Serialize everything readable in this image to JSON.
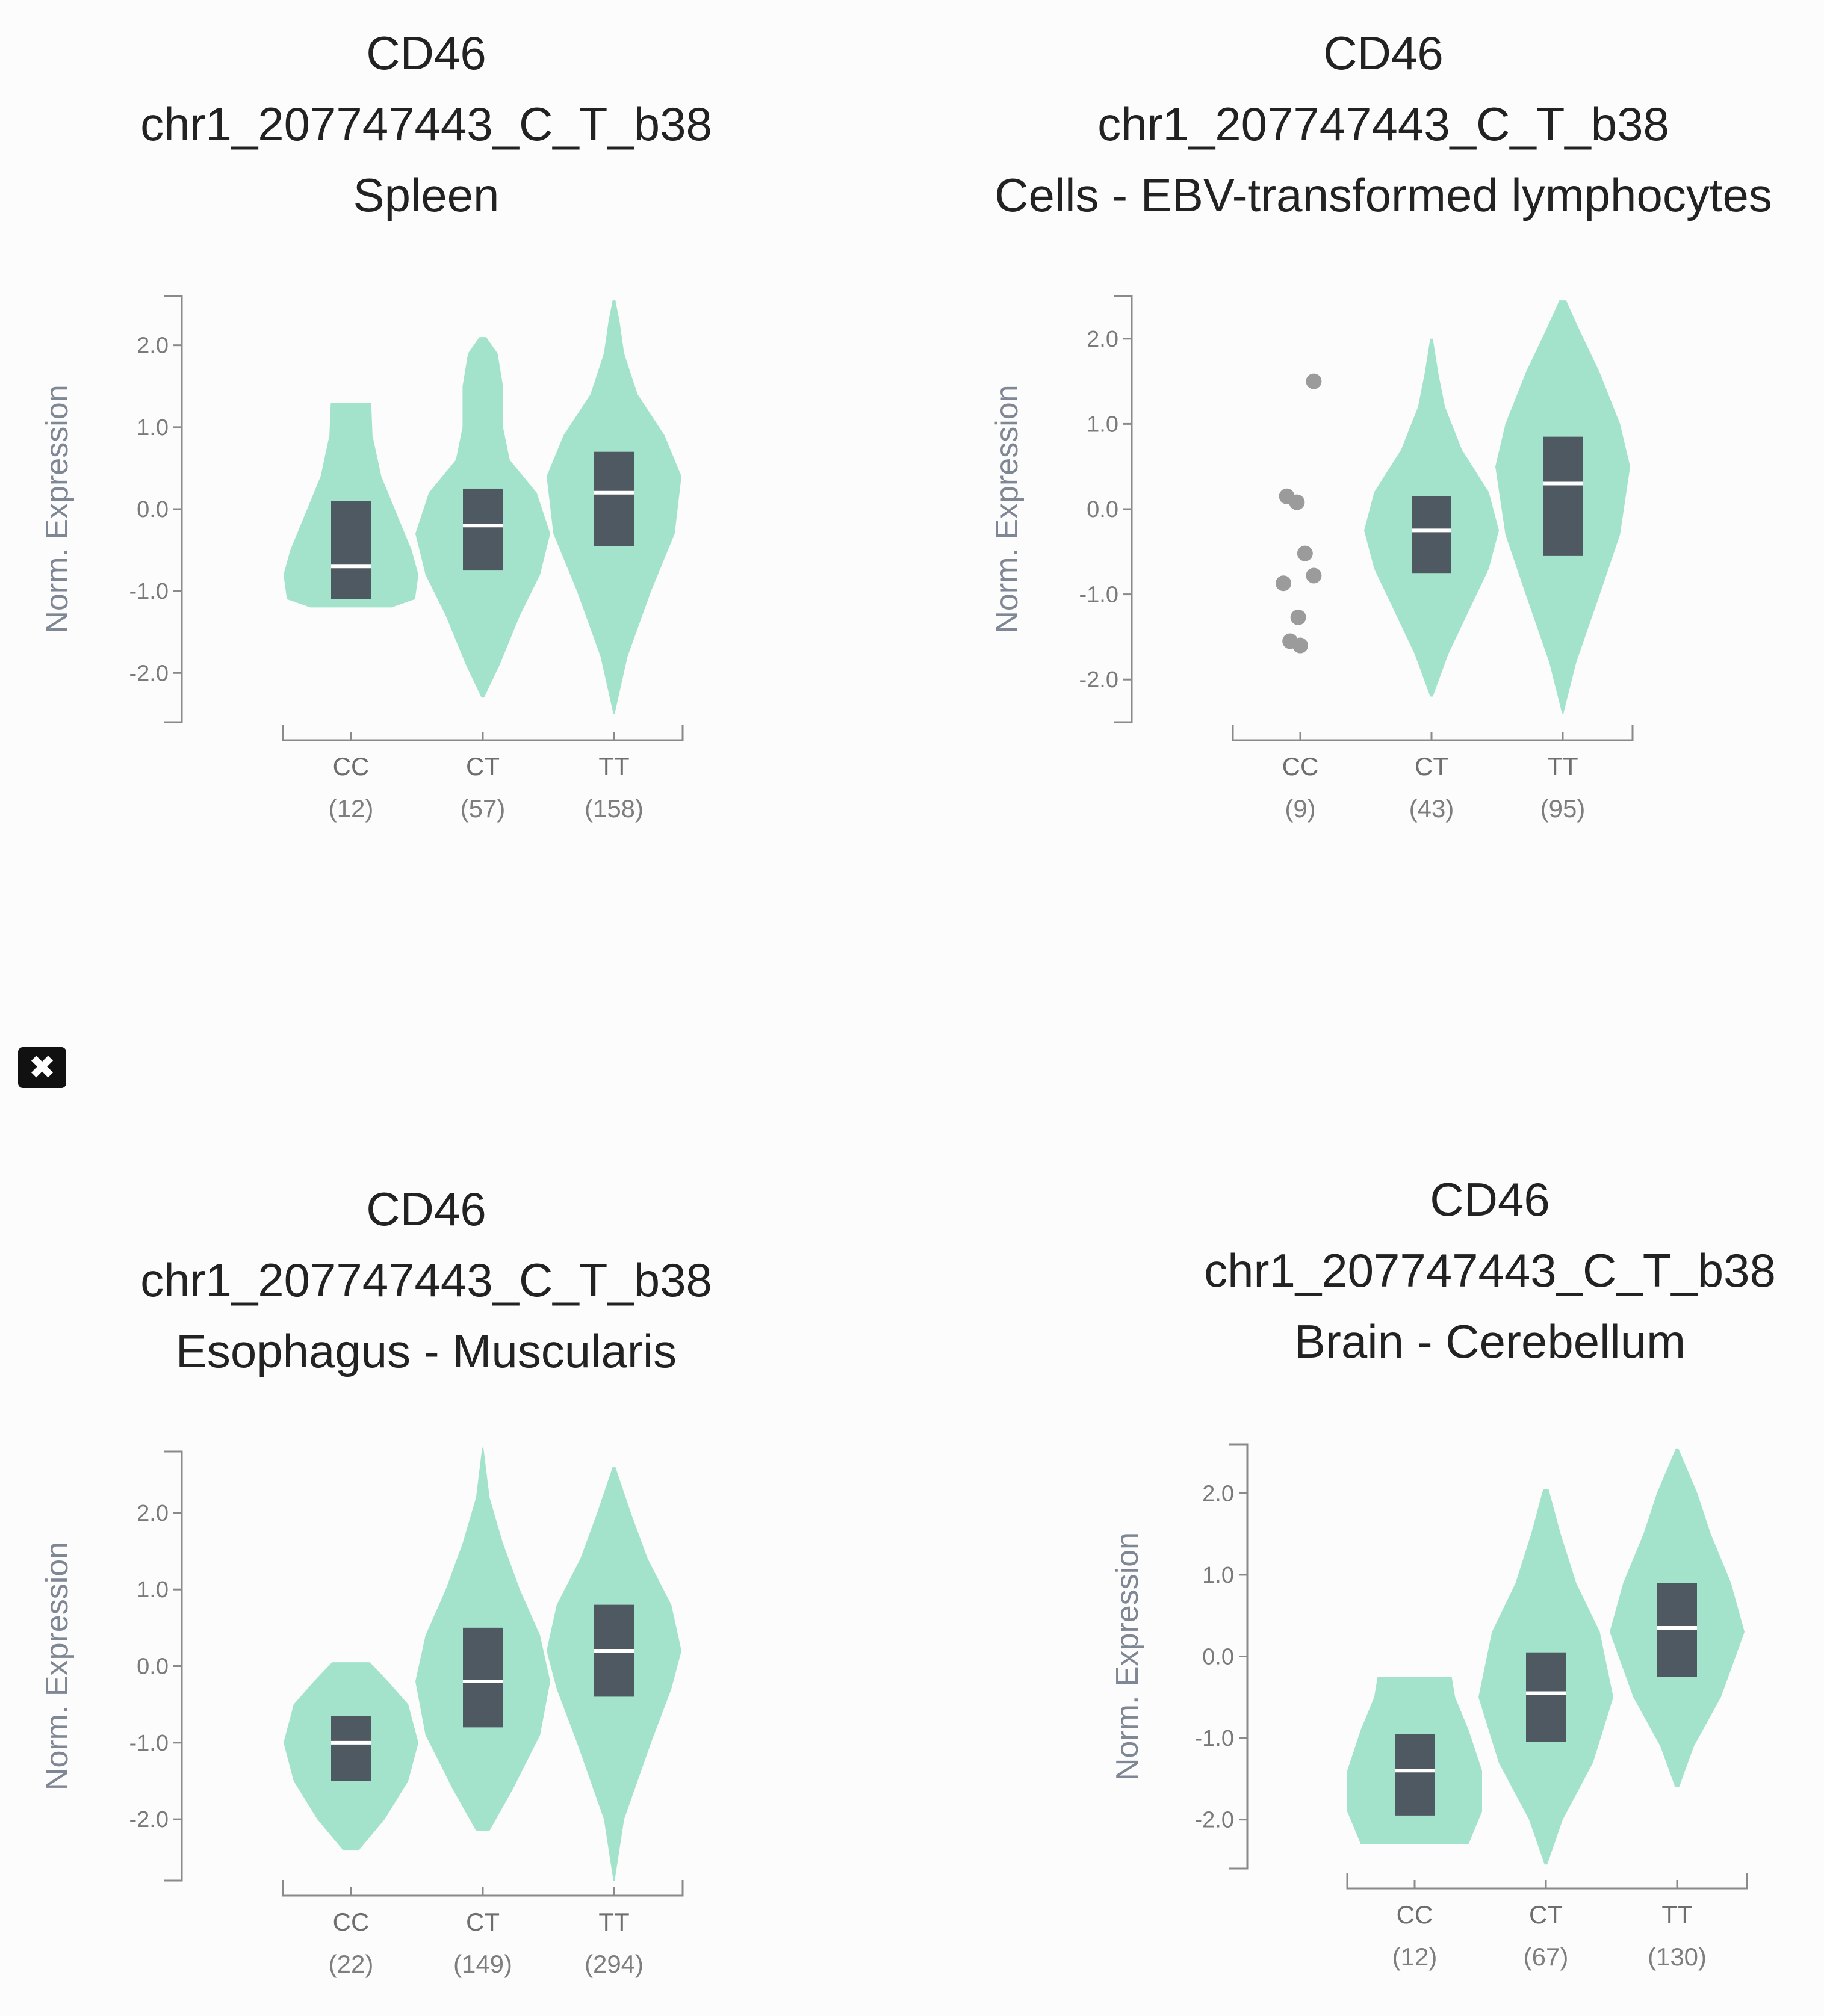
{
  "close_button": {
    "icon": "close-icon",
    "symbol": "✖",
    "bg": "#111111",
    "fg": "#ffffff"
  },
  "colors": {
    "violin": "#a4e3cb",
    "box": "#4f5962",
    "median": "#ffffff",
    "outlier": "#9b9b9b",
    "axis": "#8a8a8a"
  },
  "chart_data": [
    {
      "type": "violin",
      "gene": "CD46",
      "variant": "chr1_207747443_C_T_b38",
      "tissue": "Spleen",
      "ylabel": "Norm. Expression",
      "ylim": [
        -2.6,
        2.6
      ],
      "yticks": [
        "2.0",
        "1.0",
        "0.0",
        "-1.0",
        "-2.0"
      ],
      "ytick_values": [
        2.0,
        1.0,
        0.0,
        -1.0,
        -2.0
      ],
      "categories": [
        "CC",
        "CT",
        "TT"
      ],
      "counts": [
        "(12)",
        "(57)",
        "(158)"
      ],
      "groups": [
        {
          "name": "CC",
          "min": -1.2,
          "max": 1.3,
          "q1": -1.1,
          "median": -0.7,
          "q3": 0.1,
          "profile": [
            [
              -1.2,
              0.6
            ],
            [
              -1.1,
              0.95
            ],
            [
              -0.8,
              1.0
            ],
            [
              -0.5,
              0.9
            ],
            [
              -0.1,
              0.7
            ],
            [
              0.4,
              0.45
            ],
            [
              0.9,
              0.32
            ],
            [
              1.3,
              0.3
            ]
          ]
        },
        {
          "name": "CT",
          "min": -2.3,
          "max": 2.1,
          "q1": -0.75,
          "median": -0.2,
          "q3": 0.25,
          "profile": [
            [
              -2.3,
              0.02
            ],
            [
              -1.9,
              0.25
            ],
            [
              -1.3,
              0.55
            ],
            [
              -0.8,
              0.85
            ],
            [
              -0.3,
              1.0
            ],
            [
              0.2,
              0.8
            ],
            [
              0.6,
              0.4
            ],
            [
              1.0,
              0.3
            ],
            [
              1.5,
              0.3
            ],
            [
              1.9,
              0.22
            ],
            [
              2.1,
              0.05
            ]
          ]
        },
        {
          "name": "TT",
          "min": -2.5,
          "max": 2.55,
          "q1": -0.45,
          "median": 0.2,
          "q3": 0.7,
          "profile": [
            [
              -2.5,
              0.01
            ],
            [
              -1.8,
              0.2
            ],
            [
              -1.0,
              0.55
            ],
            [
              -0.3,
              0.9
            ],
            [
              0.4,
              1.0
            ],
            [
              0.9,
              0.75
            ],
            [
              1.4,
              0.35
            ],
            [
              1.9,
              0.15
            ],
            [
              2.3,
              0.08
            ],
            [
              2.55,
              0.02
            ]
          ]
        }
      ],
      "outliers": []
    },
    {
      "type": "violin",
      "gene": "CD46",
      "variant": "chr1_207747443_C_T_b38",
      "tissue": "Cells - EBV-transformed lymphocytes",
      "ylabel": "Norm. Expression",
      "ylim": [
        -2.5,
        2.5
      ],
      "yticks": [
        "2.0",
        "1.0",
        "0.0",
        "-1.0",
        "-2.0"
      ],
      "ytick_values": [
        2.0,
        1.0,
        0.0,
        -1.0,
        -2.0
      ],
      "categories": [
        "CC",
        "CT",
        "TT"
      ],
      "counts": [
        "(9)",
        "(43)",
        "(95)"
      ],
      "groups": [
        {
          "name": "CC",
          "min": null,
          "max": null,
          "q1": null,
          "median": null,
          "q3": null,
          "profile": []
        },
        {
          "name": "CT",
          "min": -2.2,
          "max": 2.0,
          "q1": -0.75,
          "median": -0.25,
          "q3": 0.15,
          "profile": [
            [
              -2.2,
              0.02
            ],
            [
              -1.7,
              0.25
            ],
            [
              -1.2,
              0.55
            ],
            [
              -0.7,
              0.85
            ],
            [
              -0.25,
              1.0
            ],
            [
              0.2,
              0.85
            ],
            [
              0.7,
              0.45
            ],
            [
              1.2,
              0.2
            ],
            [
              1.6,
              0.1
            ],
            [
              2.0,
              0.02
            ]
          ]
        },
        {
          "name": "TT",
          "min": -2.4,
          "max": 2.45,
          "q1": -0.55,
          "median": 0.3,
          "q3": 0.85,
          "profile": [
            [
              -2.4,
              0.01
            ],
            [
              -1.8,
              0.2
            ],
            [
              -1.0,
              0.55
            ],
            [
              -0.3,
              0.85
            ],
            [
              0.5,
              1.0
            ],
            [
              1.0,
              0.85
            ],
            [
              1.6,
              0.55
            ],
            [
              2.1,
              0.25
            ],
            [
              2.45,
              0.05
            ]
          ]
        }
      ],
      "outliers": [
        {
          "cat": 0,
          "dx": 0.2,
          "y": 1.5
        },
        {
          "cat": 0,
          "dx": -0.2,
          "y": 0.15
        },
        {
          "cat": 0,
          "dx": -0.05,
          "y": 0.08
        },
        {
          "cat": 0,
          "dx": 0.07,
          "y": -0.52
        },
        {
          "cat": 0,
          "dx": 0.2,
          "y": -0.78
        },
        {
          "cat": 0,
          "dx": -0.25,
          "y": -0.87
        },
        {
          "cat": 0,
          "dx": -0.03,
          "y": -1.27
        },
        {
          "cat": 0,
          "dx": -0.15,
          "y": -1.55
        },
        {
          "cat": 0,
          "dx": 0.0,
          "y": -1.6
        }
      ]
    },
    {
      "type": "violin",
      "gene": "CD46",
      "variant": "chr1_207747443_C_T_b38",
      "tissue": "Esophagus - Muscularis",
      "ylabel": "Norm. Expression",
      "ylim": [
        -2.8,
        2.8
      ],
      "yticks": [
        "2.0",
        "1.0",
        "0.0",
        "-1.0",
        "-2.0"
      ],
      "ytick_values": [
        2.0,
        1.0,
        0.0,
        -1.0,
        -2.0
      ],
      "categories": [
        "CC",
        "CT",
        "TT"
      ],
      "counts": [
        "(22)",
        "(149)",
        "(294)"
      ],
      "groups": [
        {
          "name": "CC",
          "min": -2.4,
          "max": 0.05,
          "q1": -1.5,
          "median": -1.0,
          "q3": -0.65,
          "profile": [
            [
              -2.4,
              0.12
            ],
            [
              -2.0,
              0.5
            ],
            [
              -1.5,
              0.85
            ],
            [
              -1.0,
              1.0
            ],
            [
              -0.5,
              0.85
            ],
            [
              -0.2,
              0.55
            ],
            [
              0.05,
              0.28
            ]
          ]
        },
        {
          "name": "CT",
          "min": -2.15,
          "max": 2.85,
          "q1": -0.8,
          "median": -0.2,
          "q3": 0.5,
          "profile": [
            [
              -2.15,
              0.1
            ],
            [
              -1.6,
              0.45
            ],
            [
              -0.9,
              0.85
            ],
            [
              -0.2,
              1.0
            ],
            [
              0.4,
              0.85
            ],
            [
              1.0,
              0.55
            ],
            [
              1.6,
              0.3
            ],
            [
              2.2,
              0.1
            ],
            [
              2.85,
              0.01
            ]
          ]
        },
        {
          "name": "TT",
          "min": -2.8,
          "max": 2.6,
          "q1": -0.4,
          "median": 0.2,
          "q3": 0.8,
          "profile": [
            [
              -2.8,
              0.01
            ],
            [
              -2.0,
              0.15
            ],
            [
              -1.0,
              0.55
            ],
            [
              -0.3,
              0.85
            ],
            [
              0.2,
              1.0
            ],
            [
              0.8,
              0.85
            ],
            [
              1.4,
              0.5
            ],
            [
              2.0,
              0.25
            ],
            [
              2.6,
              0.02
            ]
          ]
        }
      ],
      "outliers": []
    },
    {
      "type": "violin",
      "gene": "CD46",
      "variant": "chr1_207747443_C_T_b38",
      "tissue": "Brain - Cerebellum",
      "ylabel": "Norm. Expression",
      "ylim": [
        -2.6,
        2.6
      ],
      "yticks": [
        "2.0",
        "1.0",
        "0.0",
        "-1.0",
        "-2.0"
      ],
      "ytick_values": [
        2.0,
        1.0,
        0.0,
        -1.0,
        -2.0
      ],
      "categories": [
        "CC",
        "CT",
        "TT"
      ],
      "counts": [
        "(12)",
        "(67)",
        "(130)"
      ],
      "groups": [
        {
          "name": "CC",
          "min": -2.3,
          "max": -0.25,
          "q1": -1.95,
          "median": -1.4,
          "q3": -0.95,
          "profile": [
            [
              -2.3,
              0.8
            ],
            [
              -1.9,
              1.0
            ],
            [
              -1.4,
              1.0
            ],
            [
              -0.9,
              0.8
            ],
            [
              -0.5,
              0.6
            ],
            [
              -0.25,
              0.55
            ]
          ]
        },
        {
          "name": "CT",
          "min": -2.55,
          "max": 2.05,
          "q1": -1.05,
          "median": -0.45,
          "q3": 0.05,
          "profile": [
            [
              -2.55,
              0.02
            ],
            [
              -2.0,
              0.25
            ],
            [
              -1.3,
              0.7
            ],
            [
              -0.5,
              1.0
            ],
            [
              0.3,
              0.8
            ],
            [
              0.9,
              0.45
            ],
            [
              1.5,
              0.22
            ],
            [
              2.05,
              0.04
            ]
          ]
        },
        {
          "name": "TT",
          "min": -1.6,
          "max": 2.55,
          "q1": -0.25,
          "median": 0.35,
          "q3": 0.9,
          "profile": [
            [
              -1.6,
              0.03
            ],
            [
              -1.1,
              0.25
            ],
            [
              -0.5,
              0.65
            ],
            [
              0.3,
              1.0
            ],
            [
              0.9,
              0.8
            ],
            [
              1.5,
              0.5
            ],
            [
              2.0,
              0.3
            ],
            [
              2.55,
              0.02
            ]
          ]
        }
      ],
      "outliers": []
    }
  ]
}
